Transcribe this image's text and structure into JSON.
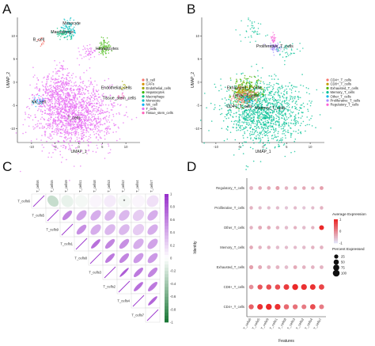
{
  "panels": {
    "a_label": "A",
    "b_label": "B",
    "c_label": "C",
    "d_label": "D"
  },
  "chart_data": [
    {
      "type": "scatter",
      "panel": "A",
      "title": "",
      "xlabel": "UMAP_1",
      "ylabel": "UMAP_2",
      "xticks": [
        "-10",
        "-5",
        "0",
        "5",
        "10"
      ],
      "yticks": [
        "-10",
        "-5",
        "0",
        "5",
        "10"
      ],
      "xlim": [
        -13,
        13
      ],
      "ylim": [
        -13,
        14
      ],
      "legend": [
        "B_cell",
        "CAFs",
        "Endothelial_cells",
        "Hepatocytes",
        "Macrophage",
        "Monocyte",
        "NK_cell",
        "T_cells",
        "Tissue_stem_cells"
      ],
      "legend_placement": "right",
      "cluster_labels": [
        {
          "text": "Monocyte",
          "x": -1.5,
          "y": 12.5
        },
        {
          "text": "Macrophage",
          "x": -3.5,
          "y": 10.6
        },
        {
          "text": "B_cell",
          "x": -8.5,
          "y": 9.0
        },
        {
          "text": "Hepatocytes",
          "x": 6.0,
          "y": 7.0
        },
        {
          "text": "Endothelial_cells",
          "x": 8.0,
          "y": -1.5
        },
        {
          "text": "Tissue_stem_cells",
          "x": 8.6,
          "y": -3.7
        },
        {
          "text": "NK_cell",
          "x": -8.5,
          "y": -4.5
        },
        {
          "text": "T_cells",
          "x": -1.0,
          "y": -8.0
        }
      ]
    },
    {
      "type": "scatter",
      "panel": "B",
      "title": "",
      "xlabel": "UMAP_1",
      "ylabel": "UMAP_2",
      "xticks": [
        "-10",
        "-5",
        "0",
        "5",
        "10"
      ],
      "yticks": [
        "-10",
        "-5",
        "0",
        "5",
        "10"
      ],
      "xlim": [
        -13,
        13
      ],
      "ylim": [
        -13,
        14
      ],
      "legend": [
        "CD4+_T_cells",
        "CD8+_T_cells",
        "Exhausted_T_cells",
        "Memory_T_cells",
        "Other_T_cells",
        "Proliferative_T_cells",
        "Regulatory_T_cells"
      ],
      "legend_placement": "right",
      "cluster_labels": [
        {
          "text": "Proliferative_T_cells",
          "x": 2.5,
          "y": 7.5
        },
        {
          "text": "Exhausted_T_cells",
          "x": -4.0,
          "y": -1.5
        },
        {
          "text": "Other_T_cells",
          "x": -3.6,
          "y": -3.2
        },
        {
          "text": "CD4+_T_cells",
          "x": -5.0,
          "y": -5.5
        },
        {
          "text": "Memory_T_cells",
          "x": 1.5,
          "y": -5.8
        }
      ]
    },
    {
      "type": "heatmap",
      "panel": "C",
      "title": "",
      "labels": [
        "T_cells6",
        "T_cells5",
        "T_cells9",
        "T_cells1",
        "T_cells8",
        "T_cells3",
        "T_cells2",
        "T_cells4",
        "T_cells7"
      ],
      "colorbar_ticks": [
        "1",
        "0.8",
        "0.6",
        "0.4",
        "0.2",
        "0",
        "-0.2",
        "-0.4",
        "-0.6",
        "-0.8",
        "-1"
      ],
      "star_cell": [
        "T_cells6",
        "T_cells2"
      ],
      "matrix": [
        [
          1.0,
          -0.25,
          -0.1,
          -0.05,
          0.05,
          0.1,
          -0.05,
          0.05,
          0.15
        ],
        [
          -0.25,
          1.0,
          0.6,
          0.45,
          0.4,
          0.35,
          0.35,
          0.25,
          0.4
        ],
        [
          -0.1,
          0.6,
          1.0,
          0.55,
          0.4,
          0.35,
          0.35,
          0.25,
          0.4
        ],
        [
          -0.05,
          0.45,
          0.55,
          1.0,
          0.7,
          0.6,
          0.55,
          0.4,
          0.45
        ],
        [
          0.05,
          0.4,
          0.4,
          0.7,
          1.0,
          0.65,
          0.6,
          0.5,
          0.5
        ],
        [
          0.1,
          0.35,
          0.35,
          0.6,
          0.65,
          1.0,
          0.8,
          0.65,
          0.6
        ],
        [
          -0.05,
          0.35,
          0.35,
          0.55,
          0.6,
          0.8,
          1.0,
          0.7,
          0.65
        ],
        [
          0.05,
          0.25,
          0.25,
          0.4,
          0.5,
          0.65,
          0.7,
          1.0,
          0.75
        ],
        [
          0.15,
          0.4,
          0.4,
          0.45,
          0.5,
          0.6,
          0.65,
          0.75,
          1.0
        ]
      ]
    },
    {
      "type": "scatter",
      "panel": "D",
      "title": "",
      "xlabel": "Features",
      "ylabel": "Identity",
      "x_categories": [
        "T_cells6",
        "T_cells5",
        "T_cells9",
        "T_cells1",
        "T_cells8",
        "T_cells3",
        "T_cells2",
        "T_cells4",
        "T_cells7"
      ],
      "y_categories": [
        "Regulatory_T_cells",
        "Proliferative_T_cells",
        "Other_T_cells",
        "Memory_T_cells",
        "Exhausted_T_cells",
        "CD8+_T_cells",
        "CD4+_T_cells"
      ],
      "legend_color_title": "Average Expression",
      "legend_color_ticks": [
        "1",
        "0",
        "-1"
      ],
      "legend_size_title": "Percent Expressed",
      "legend_size_values": [
        "25",
        "50",
        "75",
        "100"
      ],
      "avg_expression": [
        [
          -0.5,
          -0.4,
          -0.4,
          -0.3,
          -0.5,
          -0.5,
          -0.4,
          -0.5,
          -0.3
        ],
        [
          -0.5,
          -0.6,
          -0.6,
          -0.6,
          -0.7,
          -0.6,
          -0.7,
          -0.6,
          -0.5
        ],
        [
          -0.5,
          -0.4,
          -0.4,
          -0.5,
          -0.6,
          -0.5,
          -0.6,
          -0.5,
          1.0
        ],
        [
          -0.4,
          -0.5,
          -0.5,
          -0.6,
          -0.6,
          -0.6,
          -0.6,
          -0.5,
          -0.5
        ],
        [
          -0.3,
          -0.4,
          -0.5,
          -0.5,
          -0.6,
          -0.4,
          -0.5,
          -0.5,
          -0.5
        ],
        [
          -0.1,
          0.5,
          0.6,
          0.6,
          0.8,
          1.0,
          0.9,
          0.9,
          0.7
        ],
        [
          0.4,
          0.9,
          1.0,
          0.9,
          0.3,
          0.2,
          0.1,
          0.6,
          0.1
        ]
      ],
      "pct_expressed": [
        [
          20,
          18,
          18,
          22,
          15,
          15,
          16,
          14,
          20
        ],
        [
          15,
          14,
          14,
          14,
          12,
          13,
          12,
          12,
          15
        ],
        [
          15,
          20,
          18,
          16,
          15,
          14,
          15,
          14,
          40
        ],
        [
          18,
          16,
          16,
          15,
          14,
          14,
          15,
          15,
          18
        ],
        [
          25,
          22,
          20,
          20,
          18,
          20,
          18,
          18,
          20
        ],
        [
          35,
          45,
          50,
          50,
          60,
          70,
          65,
          60,
          55
        ],
        [
          45,
          60,
          70,
          65,
          50,
          45,
          40,
          55,
          40
        ]
      ]
    }
  ]
}
